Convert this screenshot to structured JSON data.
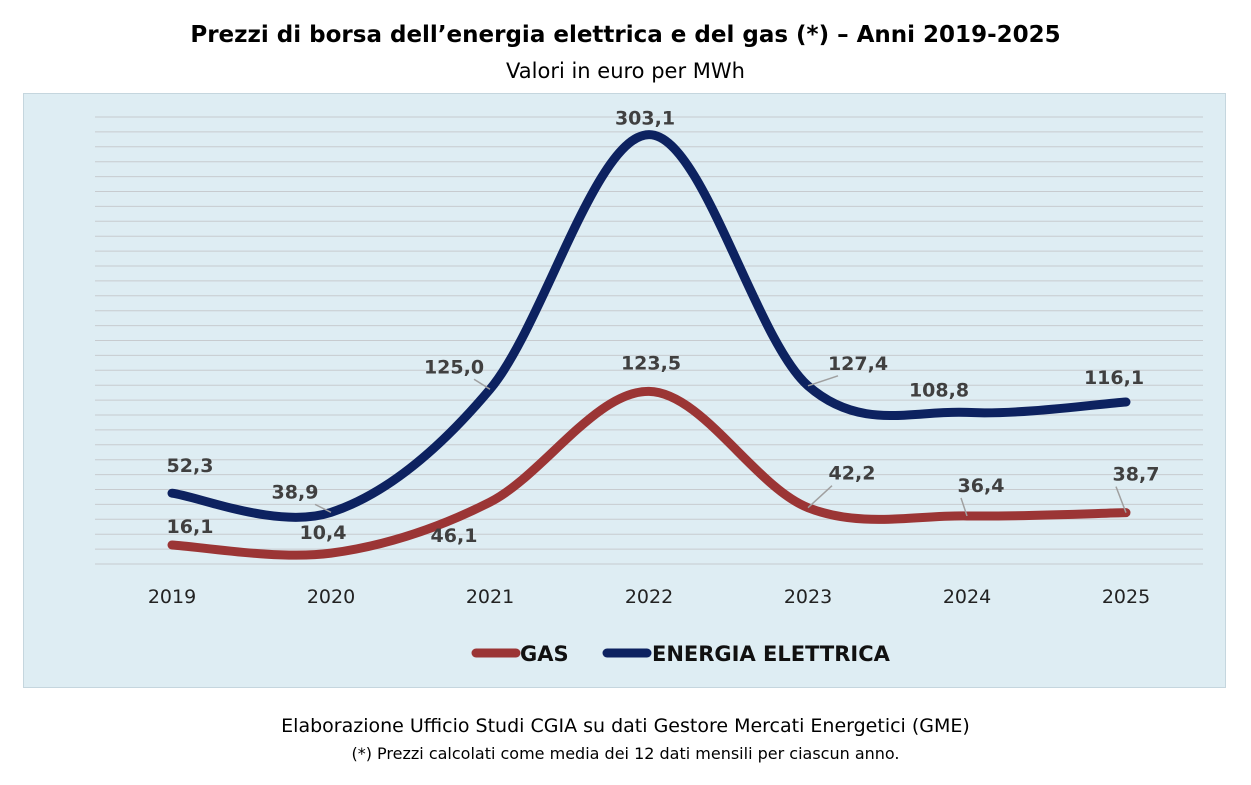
{
  "chart_data": {
    "type": "line",
    "title": "Prezzi di borsa dell’energia elettrica e del gas (*) – Anni 2019-2025",
    "subtitle": "Valori in euro per MWh",
    "categories": [
      "2019",
      "2020",
      "2021",
      "2022",
      "2023",
      "2024",
      "2025"
    ],
    "series": [
      {
        "name": "GAS",
        "color": "#9b3535",
        "values": [
          16.1,
          10.4,
          46.1,
          123.5,
          42.2,
          36.4,
          38.7
        ],
        "labels": [
          "16,1",
          "10,4",
          "46,1",
          "123,5",
          "42,2",
          "36,4",
          "38,7"
        ]
      },
      {
        "name": "ENERGIA ELETTRICA",
        "color": "#0d2260",
        "values": [
          52.3,
          38.9,
          125.0,
          303.1,
          127.4,
          108.8,
          116.1
        ],
        "labels": [
          "52,3",
          "38,9",
          "125,0",
          "303,1",
          "127,4",
          "108,8",
          "116,1"
        ]
      }
    ],
    "ylim": [
      0,
      320
    ],
    "grid": true,
    "legend_position": "bottom"
  },
  "footer": {
    "source": "Elaborazione Ufficio Studi CGIA su dati Gestore Mercati Energetici (GME)",
    "note": "(*) Prezzi calcolati come media dei 12 dati mensili per ciascun anno."
  }
}
